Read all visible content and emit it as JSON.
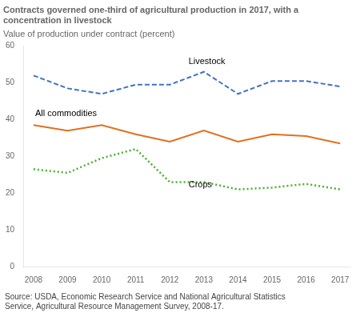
{
  "chart_data": {
    "type": "line",
    "title": "Contracts governed one-third of agricultural production in 2017, with a\nconcentration in livestock",
    "ylabel": "Value of production under contract (percent)",
    "source": "Source: USDA, Economic Research Service and National Agricultural Statistics\nService, Agricultural Resource Management Survey, 2008-17.",
    "x": [
      2008,
      2009,
      2010,
      2011,
      2012,
      2013,
      2014,
      2015,
      2016,
      2017
    ],
    "series": [
      {
        "name": "Livestock",
        "color": "#4472C4",
        "line_style": "dashed",
        "values": [
          52.0,
          48.5,
          47.0,
          49.5,
          49.5,
          53.0,
          47.0,
          50.5,
          50.5,
          49.0
        ]
      },
      {
        "name": "All commodities",
        "color": "#E07020",
        "line_style": "solid",
        "values": [
          38.5,
          37.0,
          38.5,
          36.0,
          34.0,
          37.0,
          34.0,
          36.0,
          35.5,
          33.5
        ]
      },
      {
        "name": "Crops",
        "color": "#4AAF30",
        "line_style": "dotted",
        "values": [
          26.5,
          25.5,
          29.5,
          32.0,
          23.0,
          23.0,
          21.0,
          21.5,
          22.5,
          21.0
        ]
      }
    ],
    "xlim": [
      2007.7,
      2017.3
    ],
    "xticks": [
      2008,
      2009,
      2010,
      2011,
      2012,
      2013,
      2014,
      2015,
      2016,
      2017
    ],
    "ylim": [
      0,
      60
    ],
    "yticks": [
      0,
      10,
      20,
      30,
      40,
      50,
      60
    ],
    "grid": false,
    "annotations": [
      {
        "text": "Livestock",
        "x": 2012.55,
        "y": 54.5
      },
      {
        "text": "All commodities",
        "x": 2008.05,
        "y": 40.5
      },
      {
        "text": "Crops",
        "x": 2012.55,
        "y": 21.0
      }
    ]
  }
}
